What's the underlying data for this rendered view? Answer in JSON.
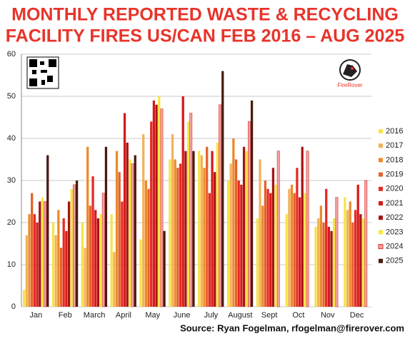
{
  "chart_data": {
    "type": "bar",
    "title": [
      "MONTHLY REPORTED WASTE & RECYCLING",
      "FACILITY FIRES US/CAN FEB 2016 – AUG 2025"
    ],
    "source": "Source: Ryan Fogelman, rfogelman@firerover.com",
    "logo_text": "FireRover",
    "categories": [
      "Jan",
      "Feb",
      "March",
      "April",
      "May",
      "June",
      "July",
      "August",
      "Sept",
      "Oct",
      "Nov",
      "Dec"
    ],
    "series": [
      {
        "name": "2016",
        "color": "#f7e34a",
        "values": [
          4,
          20,
          20,
          22,
          16,
          35,
          37,
          30,
          21,
          22,
          19,
          26
        ]
      },
      {
        "name": "2017",
        "color": "#f3b25a",
        "values": [
          17,
          17,
          14,
          13,
          41,
          41,
          36,
          34,
          35,
          28,
          21,
          23
        ]
      },
      {
        "name": "2018",
        "color": "#ec8a2c",
        "values": [
          22,
          23,
          38,
          37,
          30,
          35,
          33,
          40,
          24,
          29,
          24,
          25
        ]
      },
      {
        "name": "2019",
        "color": "#e4622a",
        "values": [
          27,
          14,
          24,
          32,
          28,
          33,
          38,
          35,
          30,
          27,
          20,
          20
        ]
      },
      {
        "name": "2020",
        "color": "#e62a24",
        "values": [
          22,
          21,
          31,
          25,
          44,
          34,
          27,
          30,
          28,
          33,
          28,
          23
        ]
      },
      {
        "name": "2021",
        "color": "#d61a1a",
        "values": [
          20,
          18,
          23,
          46,
          49,
          50,
          37,
          29,
          27,
          26,
          19,
          29
        ]
      },
      {
        "name": "2022",
        "color": "#a81414",
        "values": [
          25,
          25,
          21,
          39,
          48,
          37,
          32,
          38,
          33,
          38,
          18,
          22
        ]
      },
      {
        "name": "2023",
        "color": "#f9e640",
        "values": [
          26,
          28,
          22,
          35,
          50,
          44,
          39,
          37,
          29,
          27,
          21,
          21
        ]
      },
      {
        "name": "2024",
        "color": "#f2a2a0",
        "values": [
          25,
          29,
          27,
          34,
          47,
          46,
          48,
          44,
          37,
          37,
          26,
          30
        ]
      },
      {
        "name": "2025",
        "color": "#4a1a10",
        "values": [
          36,
          30,
          38,
          36,
          18,
          37,
          56,
          49,
          null,
          null,
          null,
          null
        ]
      }
    ],
    "ylim": [
      0,
      60
    ],
    "yticks": [
      0,
      10,
      20,
      30,
      40,
      50,
      60
    ],
    "grid": true,
    "legend": "right"
  }
}
